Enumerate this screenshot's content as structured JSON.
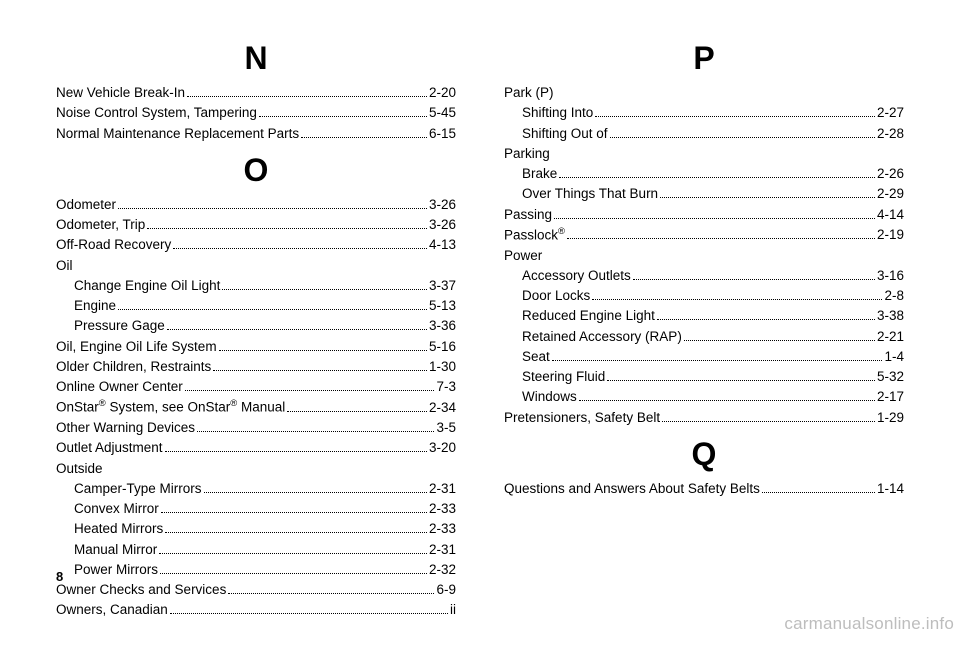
{
  "page_number": "8",
  "watermark": "carmanualsonline.info",
  "left": {
    "sections": [
      {
        "letter": "N",
        "entries": [
          {
            "label": "New Vehicle Break-In",
            "page": "2-20",
            "indent": 0
          },
          {
            "label": "Noise Control System, Tampering",
            "page": "5-45",
            "indent": 0
          },
          {
            "label": "Normal Maintenance Replacement Parts",
            "page": "6-15",
            "indent": 0
          }
        ]
      },
      {
        "letter": "O",
        "entries": [
          {
            "label": "Odometer",
            "page": "3-26",
            "indent": 0
          },
          {
            "label": "Odometer, Trip",
            "page": "3-26",
            "indent": 0
          },
          {
            "label": "Off-Road Recovery",
            "page": "4-13",
            "indent": 0
          },
          {
            "label": "Oil",
            "group": true
          },
          {
            "label": "Change Engine Oil Light",
            "page": "3-37",
            "indent": 1
          },
          {
            "label": "Engine",
            "page": "5-13",
            "indent": 1
          },
          {
            "label": "Pressure Gage",
            "page": "3-36",
            "indent": 1
          },
          {
            "label": "Oil, Engine Oil Life System",
            "page": "5-16",
            "indent": 0
          },
          {
            "label": "Older Children, Restraints",
            "page": "1-30",
            "indent": 0
          },
          {
            "label": "Online Owner Center",
            "page": "7-3",
            "indent": 0
          },
          {
            "label": "OnStar® System, see OnStar® Manual",
            "page": "2-34",
            "indent": 0,
            "html": true
          },
          {
            "label": "Other Warning Devices",
            "page": "3-5",
            "indent": 0
          },
          {
            "label": "Outlet Adjustment",
            "page": "3-20",
            "indent": 0
          },
          {
            "label": "Outside",
            "group": true
          },
          {
            "label": "Camper-Type Mirrors",
            "page": "2-31",
            "indent": 1
          },
          {
            "label": "Convex Mirror",
            "page": "2-33",
            "indent": 1
          },
          {
            "label": "Heated Mirrors",
            "page": "2-33",
            "indent": 1
          },
          {
            "label": "Manual Mirror",
            "page": "2-31",
            "indent": 1
          },
          {
            "label": "Power Mirrors",
            "page": "2-32",
            "indent": 1
          },
          {
            "label": "Owner Checks and Services",
            "page": "6-9",
            "indent": 0
          },
          {
            "label": "Owners, Canadian",
            "page": "ii",
            "indent": 0
          }
        ]
      }
    ]
  },
  "right": {
    "sections": [
      {
        "letter": "P",
        "entries": [
          {
            "label": "Park (P)",
            "group": true
          },
          {
            "label": "Shifting Into",
            "page": "2-27",
            "indent": 1
          },
          {
            "label": "Shifting Out of",
            "page": "2-28",
            "indent": 1
          },
          {
            "label": "Parking",
            "group": true
          },
          {
            "label": "Brake",
            "page": "2-26",
            "indent": 1
          },
          {
            "label": "Over Things That Burn",
            "page": "2-29",
            "indent": 1
          },
          {
            "label": "Passing",
            "page": "4-14",
            "indent": 0
          },
          {
            "label": "Passlock®",
            "page": "2-19",
            "indent": 0,
            "html": true
          },
          {
            "label": "Power",
            "group": true
          },
          {
            "label": "Accessory Outlets",
            "page": "3-16",
            "indent": 1
          },
          {
            "label": "Door Locks",
            "page": "2-8",
            "indent": 1
          },
          {
            "label": "Reduced Engine Light",
            "page": "3-38",
            "indent": 1
          },
          {
            "label": "Retained Accessory (RAP)",
            "page": "2-21",
            "indent": 1
          },
          {
            "label": "Seat",
            "page": "1-4",
            "indent": 1
          },
          {
            "label": "Steering Fluid",
            "page": "5-32",
            "indent": 1
          },
          {
            "label": "Windows",
            "page": "2-17",
            "indent": 1
          },
          {
            "label": "Pretensioners, Safety Belt",
            "page": "1-29",
            "indent": 0
          }
        ]
      },
      {
        "letter": "Q",
        "entries": [
          {
            "label": "Questions and Answers About Safety Belts",
            "page": "1-14",
            "indent": 0
          }
        ]
      }
    ]
  }
}
